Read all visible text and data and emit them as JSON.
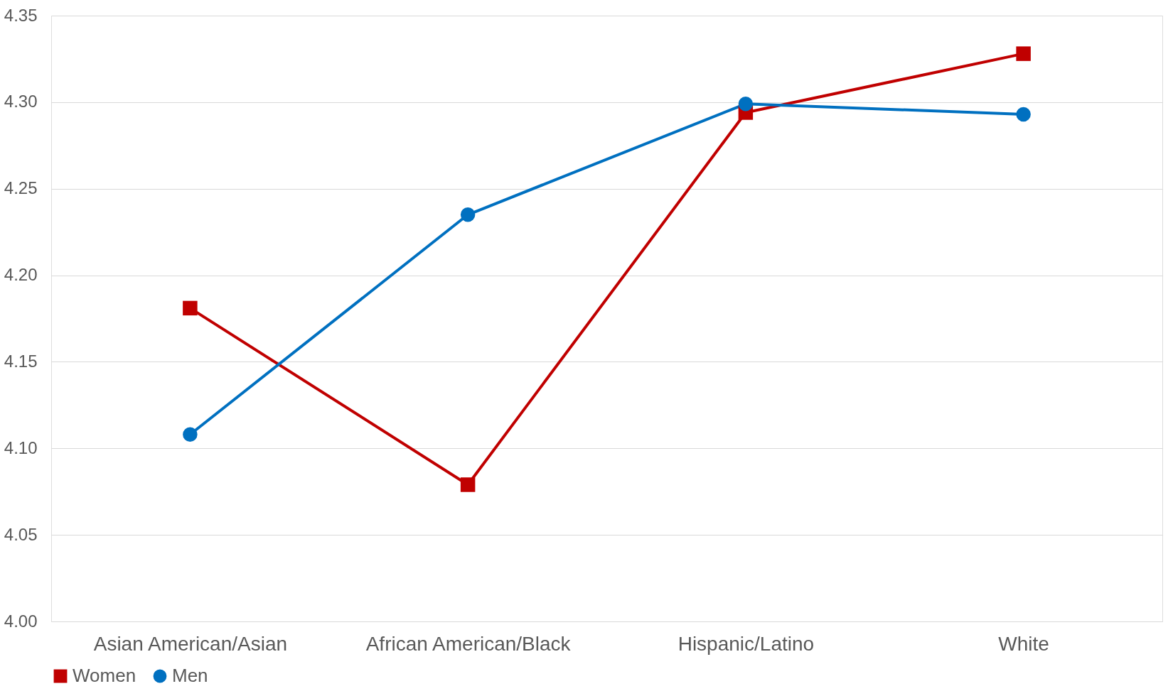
{
  "chart_data": {
    "type": "line",
    "categories": [
      "Asian American/Asian",
      "African American/Black",
      "Hispanic/Latino",
      "White"
    ],
    "series": [
      {
        "name": "Women",
        "color": "#c00000",
        "marker": "square",
        "values": [
          4.181,
          4.079,
          4.294,
          4.328
        ]
      },
      {
        "name": "Men",
        "color": "#0070c0",
        "marker": "circle",
        "values": [
          4.108,
          4.235,
          4.299,
          4.293
        ]
      }
    ],
    "ylim": [
      4.0,
      4.35
    ],
    "yticks": [
      {
        "value": 4.0,
        "label": "4.00"
      },
      4.05,
      {
        "value": 4.1,
        "label": "4.10"
      },
      4.15,
      {
        "value": 4.2,
        "label": "4.20"
      },
      4.25,
      {
        "value": 4.3,
        "label": "4.30"
      },
      4.35
    ],
    "grid": "y",
    "legend": "bottom",
    "line_style": "solid"
  }
}
